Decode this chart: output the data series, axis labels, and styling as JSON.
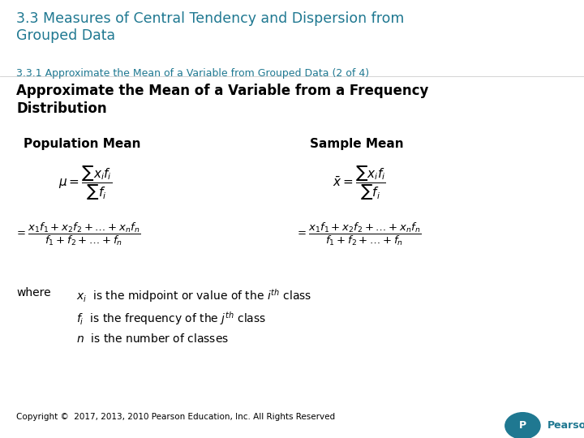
{
  "bg_color": "#ffffff",
  "title_color": "#1F7891",
  "subtitle_color": "#1F7891",
  "title_text": "3.3 Measures of Central Tendency and Dispersion from\nGrouped Data",
  "subtitle_text": "3.3.1 Approximate the Mean of a Variable from Grouped Data (2 of 4)",
  "heading_text": "Approximate the Mean of a Variable from a Frequency\nDistribution",
  "pop_label": "Population Mean",
  "samp_label": "Sample Mean",
  "footer_text": "Copyright ©  2017, 2013, 2010 Pearson Education, Inc. All Rights Reserved",
  "title_fontsize": 12.5,
  "subtitle_fontsize": 9,
  "heading_fontsize": 12,
  "label_fontsize": 11,
  "formula_fontsize": 11,
  "expand_fontsize": 9.5,
  "where_fontsize": 10,
  "footer_fontsize": 7.5,
  "pearson_color": "#1F7891"
}
